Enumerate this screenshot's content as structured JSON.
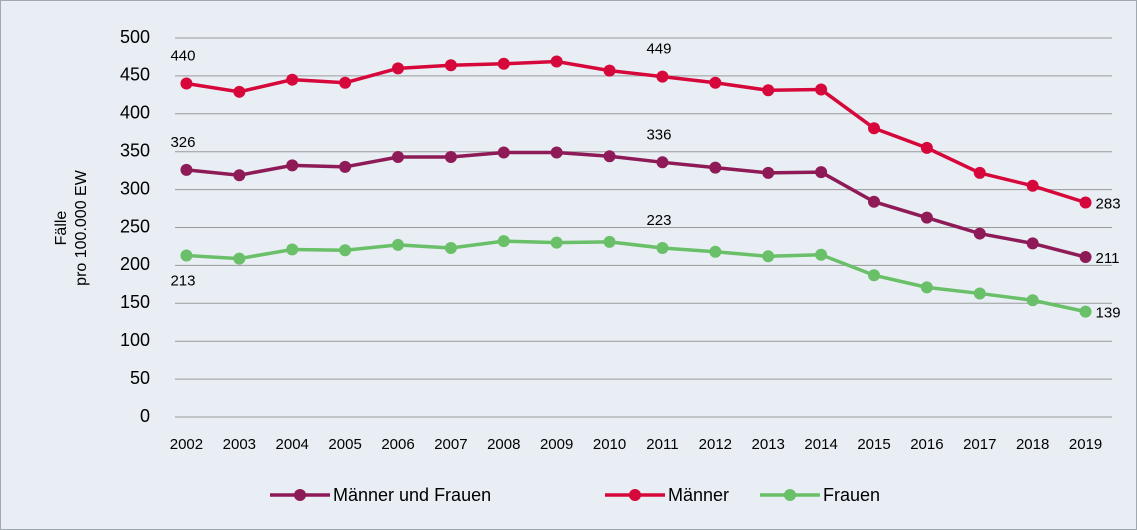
{
  "chart_data": {
    "type": "line",
    "ylabel": [
      "Fälle",
      "pro 100.000 EW"
    ],
    "categories": [
      "2002",
      "2003",
      "2004",
      "2005",
      "2006",
      "2007",
      "2008",
      "2009",
      "2010",
      "2011",
      "2012",
      "2013",
      "2014",
      "2015",
      "2016",
      "2017",
      "2018",
      "2019"
    ],
    "series": [
      {
        "name": "Männer und Frauen",
        "color": "#8e1b57",
        "values": [
          326,
          319,
          332,
          330,
          343,
          343,
          349,
          349,
          344,
          336,
          329,
          322,
          323,
          284,
          263,
          242,
          229,
          211
        ],
        "value_labels": [
          "326",
          null,
          null,
          null,
          null,
          null,
          null,
          null,
          null,
          "336",
          null,
          null,
          null,
          null,
          null,
          null,
          null,
          "211"
        ]
      },
      {
        "name": "Männer",
        "color": "#d6083b",
        "values": [
          440,
          429,
          445,
          441,
          460,
          464,
          466,
          469,
          457,
          449,
          441,
          431,
          432,
          381,
          355,
          322,
          305,
          283
        ],
        "value_labels": [
          "440",
          null,
          null,
          null,
          null,
          null,
          null,
          null,
          null,
          "449",
          null,
          null,
          null,
          null,
          null,
          null,
          null,
          "283"
        ]
      },
      {
        "name": "Frauen",
        "color": "#6abf69",
        "values": [
          213,
          209,
          221,
          220,
          227,
          223,
          232,
          230,
          231,
          223,
          218,
          212,
          214,
          187,
          171,
          163,
          154,
          139
        ],
        "value_labels": [
          "213",
          null,
          null,
          null,
          null,
          null,
          null,
          null,
          null,
          "223",
          null,
          null,
          null,
          null,
          null,
          null,
          null,
          "139"
        ]
      }
    ],
    "ylim": [
      0,
      500
    ],
    "yticks": [
      0,
      50,
      100,
      150,
      200,
      250,
      300,
      350,
      400,
      450,
      500
    ],
    "grid": true
  }
}
